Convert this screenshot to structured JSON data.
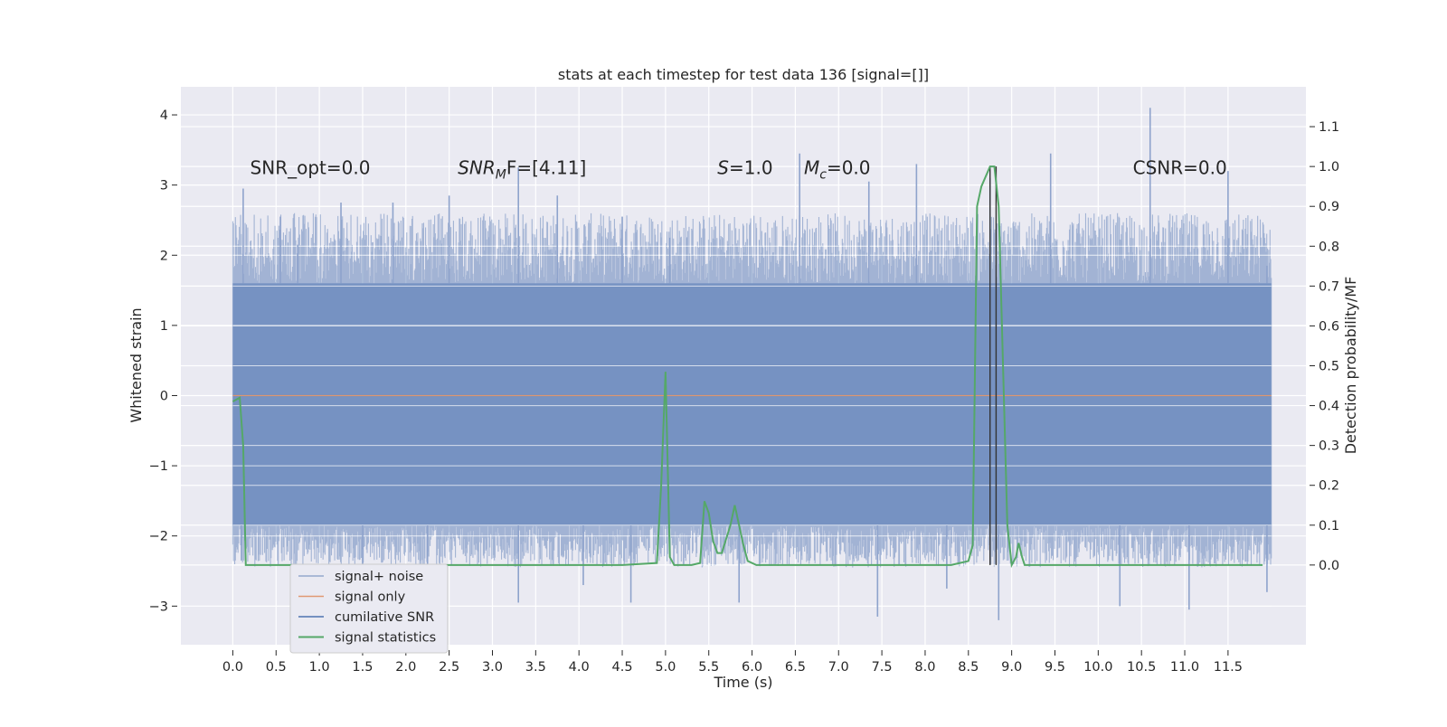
{
  "chart_data": {
    "type": "line",
    "title": "stats at each timestep for test data 136 [signal=[]]",
    "xlabel": "Time (s)",
    "ylabel": "Whitened strain",
    "ylabel_right": "Detection probability/MF",
    "xlim": [
      -0.6,
      12.4
    ],
    "ylim": [
      -3.55,
      4.4
    ],
    "ylim_right": [
      -0.2,
      1.2
    ],
    "x_ticks": [
      "0.0",
      "0.5",
      "1.0",
      "1.5",
      "2.0",
      "2.5",
      "3.0",
      "3.5",
      "4.0",
      "4.5",
      "5.0",
      "5.5",
      "6.0",
      "6.5",
      "7.0",
      "7.5",
      "8.0",
      "8.5",
      "9.0",
      "9.5",
      "10.0",
      "10.5",
      "11.0",
      "11.5"
    ],
    "x_tick_values": [
      0,
      0.5,
      1,
      1.5,
      2,
      2.5,
      3,
      3.5,
      4,
      4.5,
      5,
      5.5,
      6,
      6.5,
      7,
      7.5,
      8,
      8.5,
      9,
      9.5,
      10,
      10.5,
      11,
      11.5
    ],
    "y_ticks_left": [
      "−3",
      "−2",
      "−1",
      "0",
      "1",
      "2",
      "3",
      "4"
    ],
    "y_tick_values_left": [
      -3,
      -2,
      -1,
      0,
      1,
      2,
      3,
      4
    ],
    "y_ticks_right": [
      "0.0",
      "0.1",
      "0.2",
      "0.3",
      "0.4",
      "0.5",
      "0.6",
      "0.7",
      "0.8",
      "0.9",
      "1.0",
      "1.1"
    ],
    "y_tick_values_right": [
      0,
      0.1,
      0.2,
      0.3,
      0.4,
      0.5,
      0.6,
      0.7,
      0.8,
      0.9,
      1.0,
      1.1
    ],
    "grid": true,
    "legend_position": "lower-left",
    "annotations": [
      {
        "text": "SNR_opt=0.0",
        "x": 0.2,
        "y": 3.25
      },
      {
        "text": "SNR",
        "sub": "M",
        "rest": "F=[4.11]",
        "x": 2.6,
        "y": 3.25
      },
      {
        "text": "S",
        "rest": "=1.0",
        "x": 5.6,
        "y": 3.25
      },
      {
        "text": "M",
        "sub": "c",
        "rest": "=0.0",
        "x": 6.6,
        "y": 3.25
      },
      {
        "text": "CSNR=0.0",
        "x": 10.4,
        "y": 3.25
      }
    ],
    "series": [
      {
        "name": "signal+ noise",
        "color": "#4c72b0",
        "axis": "left",
        "noise_x_range": [
          0.0,
          12.0
        ],
        "noise_band": [
          -1.85,
          1.6
        ],
        "noise_peaks": [
          {
            "x": 0.12,
            "y": 2.95
          },
          {
            "x": 0.55,
            "y": 2.55
          },
          {
            "x": 0.75,
            "y": 2.15
          },
          {
            "x": 1.25,
            "y": 2.75
          },
          {
            "x": 1.85,
            "y": 2.75
          },
          {
            "x": 2.5,
            "y": 2.85
          },
          {
            "x": 3.3,
            "y": 3.25
          },
          {
            "x": 3.75,
            "y": 2.85
          },
          {
            "x": 4.5,
            "y": 2.55
          },
          {
            "x": 5.05,
            "y": 2.25
          },
          {
            "x": 6.55,
            "y": 3.45
          },
          {
            "x": 7.35,
            "y": 3.05
          },
          {
            "x": 7.9,
            "y": 3.3
          },
          {
            "x": 8.75,
            "y": 3.1
          },
          {
            "x": 9.45,
            "y": 3.45
          },
          {
            "x": 10.6,
            "y": 4.1
          },
          {
            "x": 11.5,
            "y": 3.2
          },
          {
            "x": 11.95,
            "y": 1.85
          }
        ],
        "noise_troughs": [
          {
            "x": 0.1,
            "y": -2.35
          },
          {
            "x": 1.5,
            "y": -2.6
          },
          {
            "x": 2.25,
            "y": -2.4
          },
          {
            "x": 3.3,
            "y": -2.95
          },
          {
            "x": 4.05,
            "y": -2.7
          },
          {
            "x": 4.6,
            "y": -2.95
          },
          {
            "x": 5.85,
            "y": -2.95
          },
          {
            "x": 7.45,
            "y": -3.15
          },
          {
            "x": 8.25,
            "y": -2.75
          },
          {
            "x": 8.85,
            "y": -3.2
          },
          {
            "x": 10.25,
            "y": -3.0
          },
          {
            "x": 11.05,
            "y": -3.05
          },
          {
            "x": 11.95,
            "y": -2.8
          }
        ]
      },
      {
        "name": "signal only",
        "color": "#dd8452",
        "axis": "left",
        "x": [
          0.0,
          12.0
        ],
        "y": [
          0.0,
          0.0
        ]
      },
      {
        "name": "cumilative SNR",
        "color": "#4c72b0",
        "axis": "left",
        "x": [],
        "y": []
      },
      {
        "name": "signal statistics",
        "color": "#55a868",
        "axis": "right",
        "x": [
          0.0,
          0.08,
          0.12,
          0.15,
          0.25,
          0.5,
          1,
          2,
          3,
          4,
          4.5,
          4.9,
          4.95,
          5.0,
          5.05,
          5.1,
          5.2,
          5.3,
          5.4,
          5.45,
          5.5,
          5.55,
          5.6,
          5.65,
          5.75,
          5.8,
          5.9,
          5.95,
          6.05,
          6.2,
          6.5,
          7,
          7.5,
          8,
          8.3,
          8.5,
          8.55,
          8.6,
          8.65,
          8.75,
          8.8,
          8.85,
          8.9,
          8.95,
          9.0,
          9.05,
          9.08,
          9.12,
          9.15,
          9.2,
          9.5,
          10,
          11,
          11.9
        ],
        "y": [
          0.41,
          0.42,
          0.3,
          0.0,
          0.0,
          0.0,
          0.0,
          0.0,
          0.0,
          0.0,
          0.0,
          0.005,
          0.2,
          0.485,
          0.02,
          0.0,
          0.0,
          0.0,
          0.005,
          0.16,
          0.13,
          0.06,
          0.03,
          0.03,
          0.1,
          0.15,
          0.05,
          0.01,
          0.0,
          0.0,
          0.0,
          0.0,
          0.0,
          0.0,
          0.0,
          0.01,
          0.05,
          0.9,
          0.95,
          1.0,
          1.0,
          0.9,
          0.5,
          0.1,
          0.0,
          0.02,
          0.055,
          0.02,
          0.0,
          0.0,
          0.0,
          0.0,
          0.0,
          0.0
        ]
      }
    ],
    "vertical_markers": [
      {
        "x": 8.75,
        "y_range": [
          0.0,
          1.0
        ],
        "color": "#333333"
      },
      {
        "x": 8.82,
        "y_range": [
          0.0,
          1.0
        ],
        "color": "#333333"
      }
    ]
  }
}
